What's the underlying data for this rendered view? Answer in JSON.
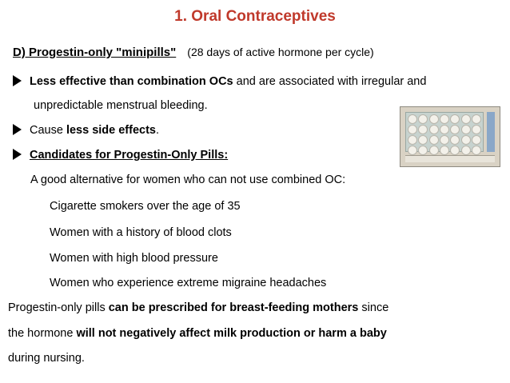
{
  "title": "1. Oral Contraceptives",
  "section": {
    "heading": "D) Progestin-only \"minipills\"",
    "note": "(28 days of active hormone per cycle)"
  },
  "bullet1": {
    "bold": "Less effective than combination OCs",
    "rest": " and are associated with irregular and",
    "cont": "unpredictable menstrual bleeding."
  },
  "bullet2": {
    "pre": "Cause ",
    "bold": "less side effects",
    "post": "."
  },
  "bullet3": {
    "label": "Candidates for Progestin-Only Pills:"
  },
  "intro": "A good alternative for women who can not use combined OC:",
  "candidates": [
    "Cigarette smokers over the age of 35",
    "Women with a history of blood clots",
    "Women with high blood pressure",
    "Women who experience extreme migraine headaches"
  ],
  "closing": {
    "p1": "Progestin-only pills ",
    "b1": "can be prescribed for breast-feeding mothers",
    "p2": " since",
    "p3": "the hormone ",
    "b2": "will not negatively affect milk production or harm a baby",
    "p4": "during nursing."
  },
  "image": {
    "icon": "pill-pack-image"
  }
}
